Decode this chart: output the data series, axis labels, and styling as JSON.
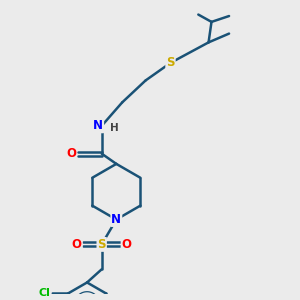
{
  "bg_color": "#ebebeb",
  "bond_color": "#1a5276",
  "bond_width": 1.8,
  "atom_colors": {
    "O": "#ff0000",
    "N": "#0000ff",
    "S": "#ccaa00",
    "Cl": "#00bb00",
    "C": "#1a5276",
    "H": "#444444"
  },
  "font_size": 8.5,
  "tbu_color": "#1a5276"
}
